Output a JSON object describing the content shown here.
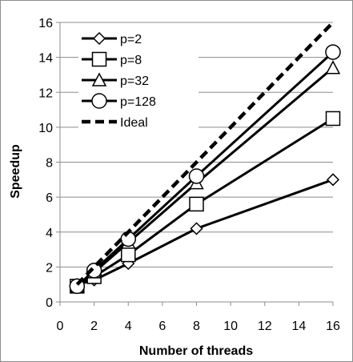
{
  "chart_data": {
    "type": "line",
    "title": "",
    "xlabel": "Number of threads",
    "ylabel": "Speedup",
    "xlim": [
      0,
      16
    ],
    "ylim": [
      0,
      16
    ],
    "xticks": [
      0,
      2,
      4,
      6,
      8,
      10,
      12,
      14,
      16
    ],
    "yticks": [
      0,
      2,
      4,
      6,
      8,
      10,
      12,
      14,
      16
    ],
    "grid": "horizontal",
    "legend_position": "top-left",
    "series": [
      {
        "name": "p=2",
        "marker": "diamond",
        "style": "solid",
        "x": [
          1,
          2,
          4,
          8,
          16
        ],
        "y": [
          1.0,
          1.25,
          2.2,
          4.2,
          7.0
        ]
      },
      {
        "name": "p=8",
        "marker": "square",
        "style": "solid",
        "x": [
          1,
          2,
          4,
          8,
          16
        ],
        "y": [
          0.9,
          1.45,
          2.7,
          5.6,
          10.5
        ]
      },
      {
        "name": "p=32",
        "marker": "triangle",
        "style": "solid",
        "x": [
          1,
          2,
          4,
          8,
          16
        ],
        "y": [
          0.9,
          1.7,
          3.4,
          6.8,
          13.4
        ]
      },
      {
        "name": "p=128",
        "marker": "circle",
        "style": "solid",
        "x": [
          1,
          2,
          4,
          8,
          16
        ],
        "y": [
          0.9,
          1.8,
          3.6,
          7.2,
          14.3
        ]
      },
      {
        "name": "Ideal",
        "marker": "none",
        "style": "dashed",
        "x": [
          1,
          16
        ],
        "y": [
          1,
          16
        ]
      }
    ]
  }
}
